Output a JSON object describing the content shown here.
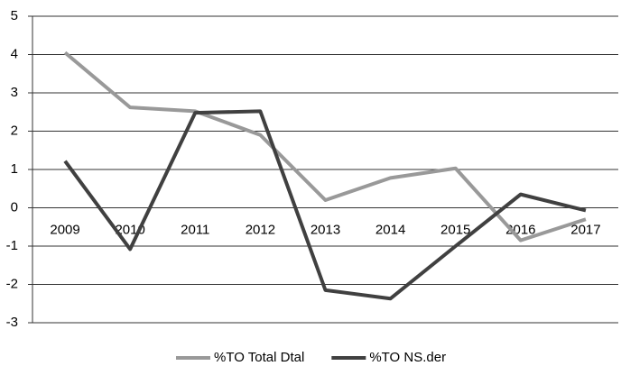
{
  "chart_data": {
    "type": "line",
    "categories": [
      "2009",
      "2010",
      "2011",
      "2012",
      "2013",
      "2014",
      "2015",
      "2016",
      "2017"
    ],
    "series": [
      {
        "name": "%TO Total Dtal",
        "color": "#999999",
        "values": [
          4.05,
          2.62,
          2.52,
          1.9,
          0.2,
          0.78,
          1.03,
          -0.85,
          -0.3
        ]
      },
      {
        "name": "%TO NS.der",
        "color": "#404040",
        "values": [
          1.22,
          -1.08,
          2.48,
          2.52,
          -2.15,
          -2.37,
          -1.0,
          0.35,
          -0.07
        ]
      }
    ],
    "ylim": [
      -3,
      5
    ],
    "yticks": [
      -3,
      -2,
      -1,
      0,
      1,
      2,
      3,
      4,
      5
    ],
    "grid": true,
    "legend": "bottom"
  }
}
